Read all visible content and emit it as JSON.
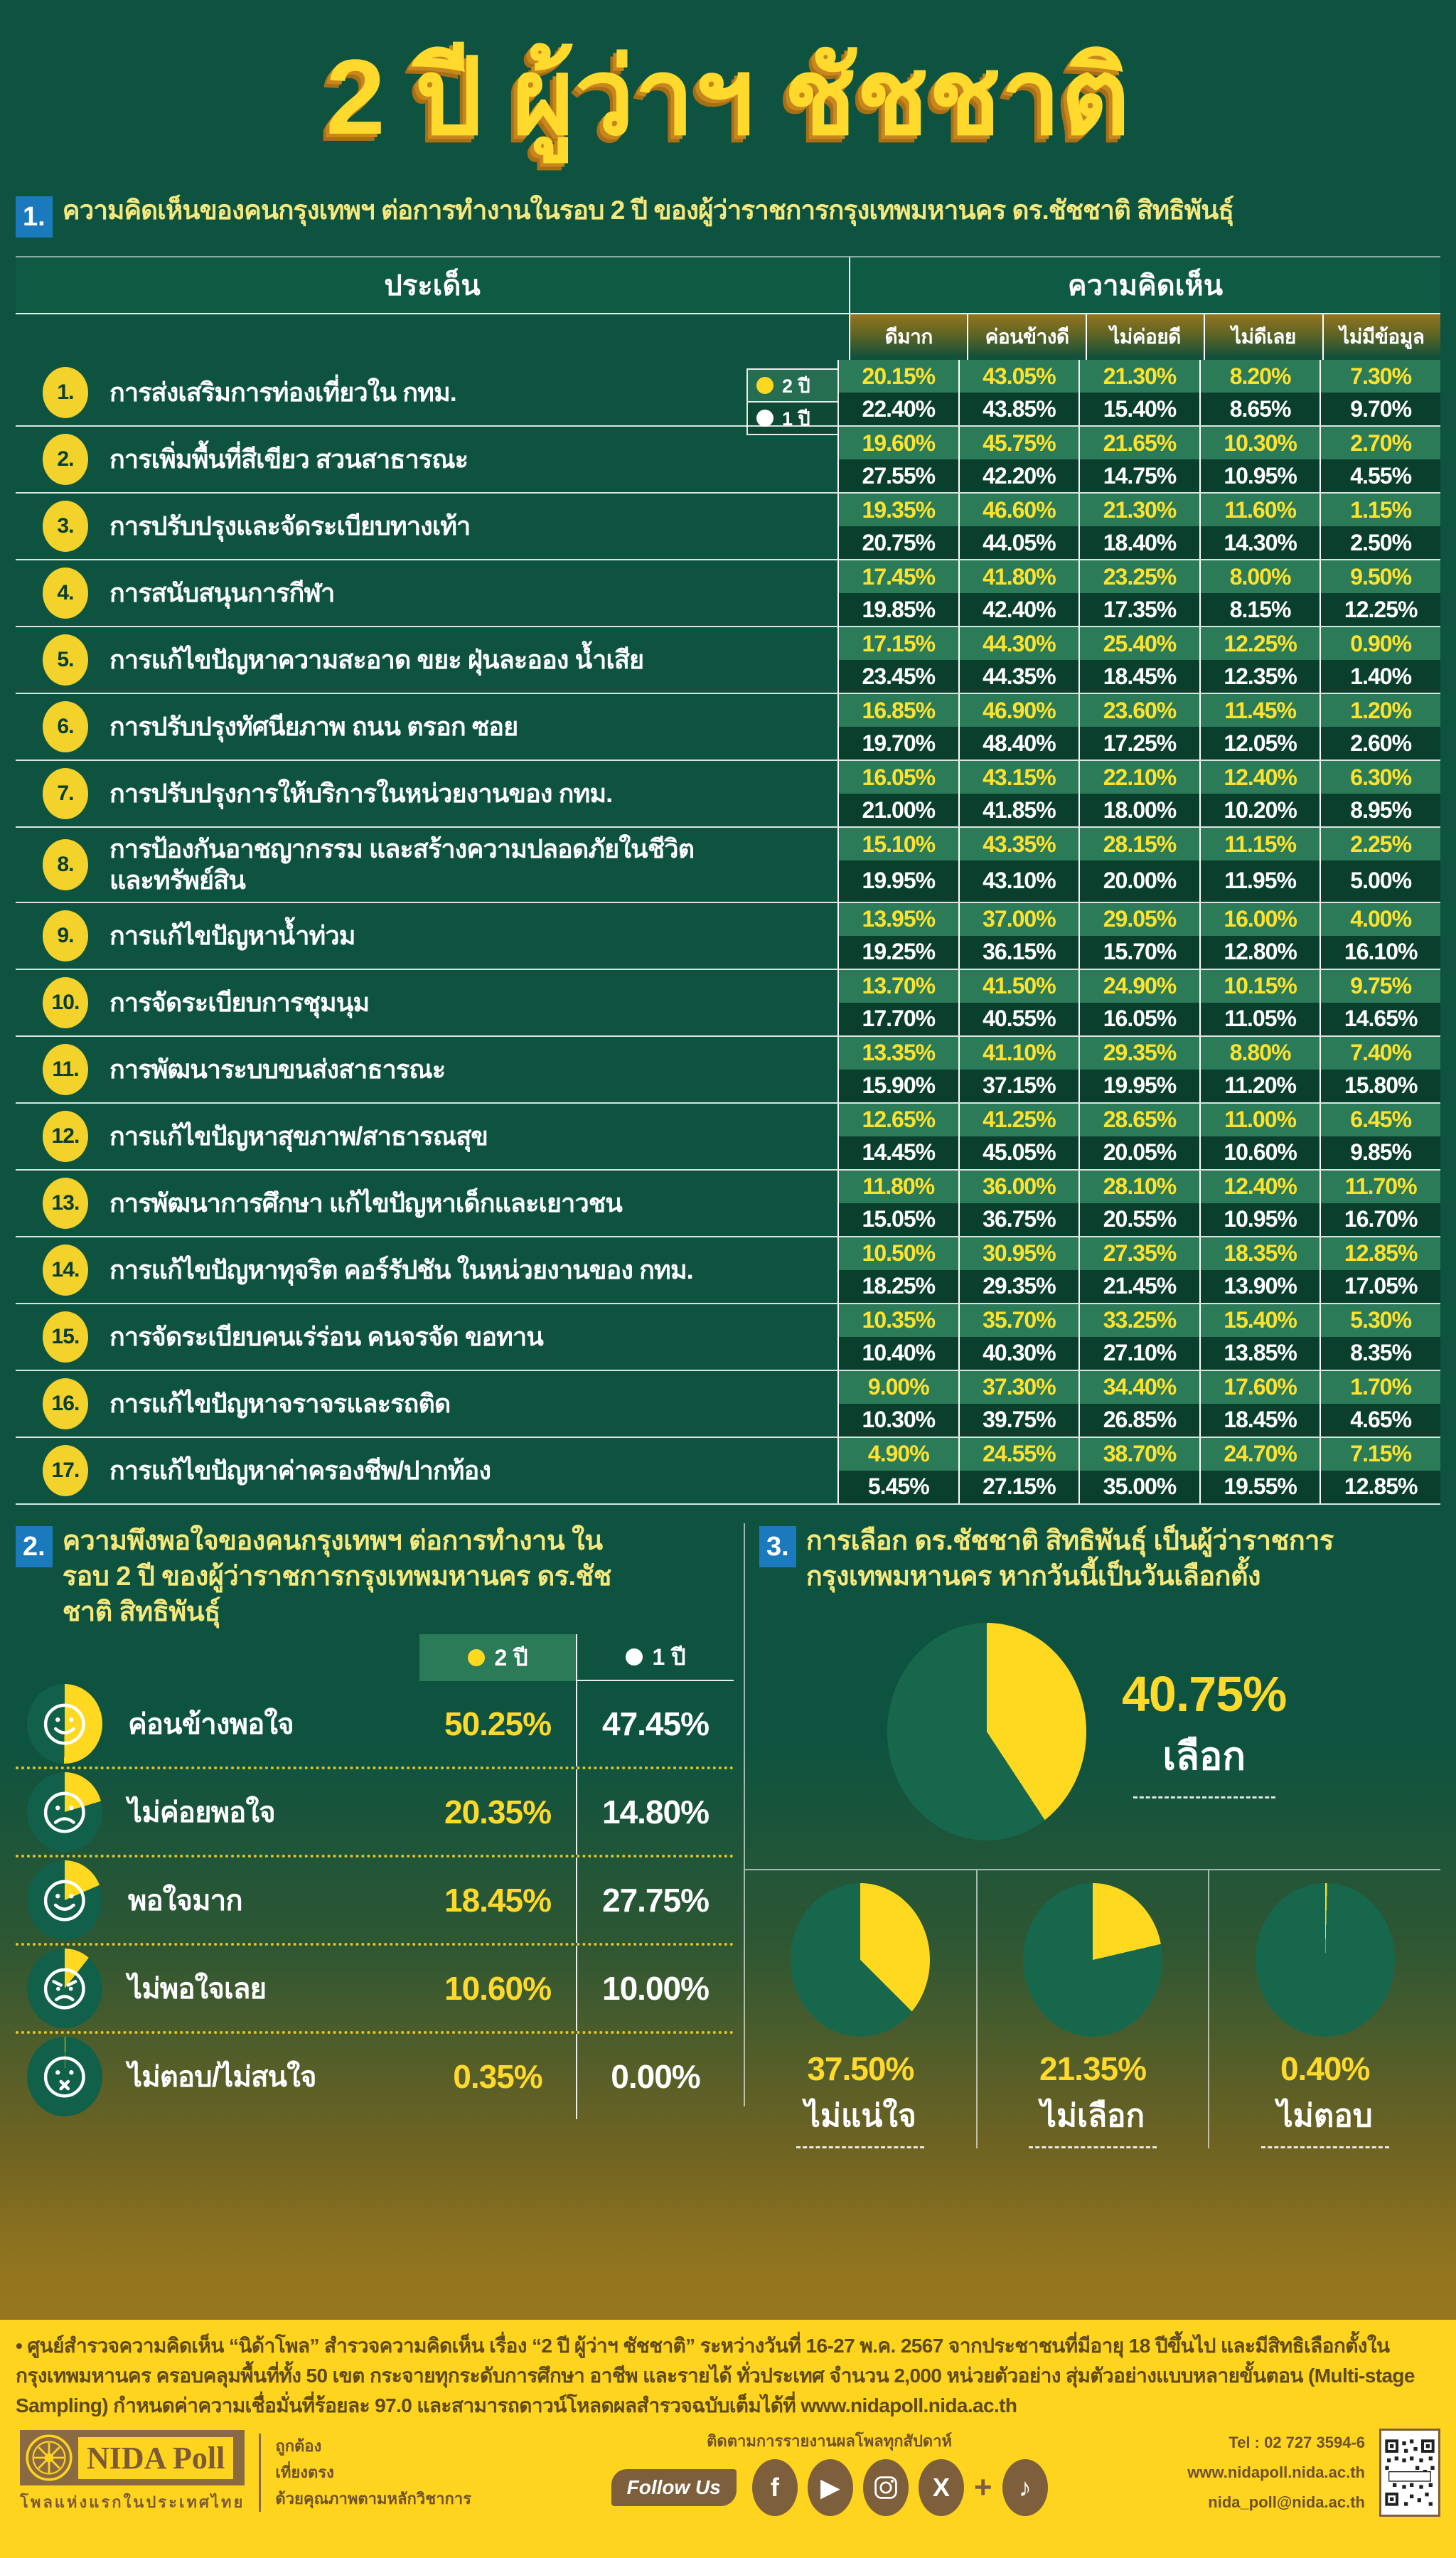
{
  "title": "2 ปี ผู้ว่าฯ ชัชชาติ",
  "colors": {
    "background_green": "#0d5340",
    "band_2yr_green": "#2b7a58",
    "band_1yr_green": "#0a3e2d",
    "header_green": "#0a3c2c",
    "accent_yellow": "#ffd92b",
    "pie_yellow": "#ffd91f",
    "pie_green": "#17674d",
    "icon_green": "#11604a",
    "badge_blue": "#1b79be",
    "footer_yellow": "#ffd41e",
    "footer_brown": "#7d5f3c"
  },
  "section1": {
    "number": "1.",
    "heading": "ความคิดเห็นของคนกรุงเทพฯ ต่อการทำงานในรอบ 2 ปี ของผู้ว่าราชการกรุงเทพมหานคร ดร.ชัชชาติ สิทธิพันธุ์",
    "table": {
      "col_issue": "ประเด็น",
      "col_opinion": "ความคิดเห็น",
      "subheaders": [
        "ดีมาก",
        "ค่อนข้างดี",
        "ไม่ค่อยดี",
        "ไม่ดีเลย",
        "ไม่มีข้อมูล"
      ],
      "legend": {
        "y2": "2 ปี",
        "y1": "1 ปี"
      }
    }
  },
  "section2": {
    "number": "2.",
    "heading": "ความพึงพอใจของคนกรุงเทพฯ ต่อการทำงาน ในรอบ 2 ปี ของผู้ว่าราชการกรุงเทพมหานคร ดร.ชัชชาติ สิทธิพันธุ์",
    "legend": {
      "y2": "2 ปี",
      "y1": "1 ปี"
    },
    "faces": [
      "smile",
      "frown",
      "smile",
      "angry",
      "meh"
    ]
  },
  "section3": {
    "number": "3.",
    "heading": "การเลือก ดร.ชัชชาติ สิทธิพันธุ์ เป็นผู้ว่าราชการ กรุงเทพมหานคร หากวันนี้เป็นวันเลือกตั้ง"
  },
  "footnote": "• ศูนย์สำรวจความคิดเห็น “นิด้าโพล” สำรวจความคิดเห็น เรื่อง “2 ปี ผู้ว่าฯ ชัชชาติ” ระหว่างวันที่ 16-27 พ.ค. 2567 จากประชาชนที่มีอายุ 18 ปีขึ้นไป และมีสิทธิเลือกตั้งในกรุงเทพมหานคร ครอบคลุมพื้นที่ทั้ง 50 เขต กระจายทุกระดับการศึกษา อาชีพ และรายได้ ทั่วประเทศ จำนวน 2,000 หน่วยตัวอย่าง สุ่มตัวอย่างแบบหลายขั้นตอน (Multi-stage Sampling) กำหนดค่าความเชื่อมั่นที่ร้อยละ 97.0 และสามารถดาวน์โหลดผลสำรวจฉบับเต็มได้ที่ www.nidapoll.nida.ac.th",
  "footer": {
    "logo_title": "NIDA Poll",
    "logo_subtitle": "โพลแห่งแรกในประเทศไทย",
    "slogan": [
      "ถูกต้อง",
      "เที่ยงตรง",
      "ด้วยคุณภาพตามหลักวิชาการ"
    ],
    "follow_heading": "ติดตามการรายงานผลโพลทุกสัปดาห์",
    "follow_label": "Follow Us",
    "social": [
      "facebook",
      "youtube",
      "instagram",
      "x",
      "plus",
      "tiktok"
    ],
    "contact": [
      "Tel : 02 727 3594-6",
      "www.nidapoll.nida.ac.th",
      "nida_poll@nida.ac.th"
    ]
  },
  "chart_data": [
    {
      "type": "table",
      "title": "ความคิดเห็นของคนกรุงเทพฯ ต่อการทำงานในรอบ 2 ปี ของผู้ว่าราชการกรุงเทพมหานคร ดร.ชัชชาติ สิทธิพันธุ์",
      "columns": [
        "ดีมาก",
        "ค่อนข้างดี",
        "ไม่ค่อยดี",
        "ไม่ดีเลย",
        "ไม่มีข้อมูล"
      ],
      "series": [
        "2 ปี",
        "1 ปี"
      ],
      "rows": [
        {
          "no": "1.",
          "topic": "การส่งเสริมการท่องเที่ยวใน กทม.",
          "y2": [
            20.15,
            43.05,
            21.3,
            8.2,
            7.3
          ],
          "y1": [
            22.4,
            43.85,
            15.4,
            8.65,
            9.7
          ]
        },
        {
          "no": "2.",
          "topic": "การเพิ่มพื้นที่สีเขียว สวนสาธารณะ",
          "y2": [
            19.6,
            45.75,
            21.65,
            10.3,
            2.7
          ],
          "y1": [
            27.55,
            42.2,
            14.75,
            10.95,
            4.55
          ]
        },
        {
          "no": "3.",
          "topic": "การปรับปรุงและจัดระเบียบทางเท้า",
          "y2": [
            19.35,
            46.6,
            21.3,
            11.6,
            1.15
          ],
          "y1": [
            20.75,
            44.05,
            18.4,
            14.3,
            2.5
          ]
        },
        {
          "no": "4.",
          "topic": "การสนับสนุนการกีฬา",
          "y2": [
            17.45,
            41.8,
            23.25,
            8.0,
            9.5
          ],
          "y1": [
            19.85,
            42.4,
            17.35,
            8.15,
            12.25
          ]
        },
        {
          "no": "5.",
          "topic": "การแก้ไขปัญหาความสะอาด ขยะ ฝุ่นละออง น้ำเสีย",
          "y2": [
            17.15,
            44.3,
            25.4,
            12.25,
            0.9
          ],
          "y1": [
            23.45,
            44.35,
            18.45,
            12.35,
            1.4
          ]
        },
        {
          "no": "6.",
          "topic": "การปรับปรุงทัศนียภาพ ถนน ตรอก ซอย",
          "y2": [
            16.85,
            46.9,
            23.6,
            11.45,
            1.2
          ],
          "y1": [
            19.7,
            48.4,
            17.25,
            12.05,
            2.6
          ]
        },
        {
          "no": "7.",
          "topic": "การปรับปรุงการให้บริการในหน่วยงานของ กทม.",
          "y2": [
            16.05,
            43.15,
            22.1,
            12.4,
            6.3
          ],
          "y1": [
            21.0,
            41.85,
            18.0,
            10.2,
            8.95
          ]
        },
        {
          "no": "8.",
          "topic": "การป้องกันอาชญากรรม และสร้างความปลอดภัยในชีวิต และทรัพย์สิน",
          "y2": [
            15.1,
            43.35,
            28.15,
            11.15,
            2.25
          ],
          "y1": [
            19.95,
            43.1,
            20.0,
            11.95,
            5.0
          ]
        },
        {
          "no": "9.",
          "topic": "การแก้ไขปัญหาน้ำท่วม",
          "y2": [
            13.95,
            37.0,
            29.05,
            16.0,
            4.0
          ],
          "y1": [
            19.25,
            36.15,
            15.7,
            12.8,
            16.1
          ]
        },
        {
          "no": "10.",
          "topic": "การจัดระเบียบการชุมนุม",
          "y2": [
            13.7,
            41.5,
            24.9,
            10.15,
            9.75
          ],
          "y1": [
            17.7,
            40.55,
            16.05,
            11.05,
            14.65
          ]
        },
        {
          "no": "11.",
          "topic": "การพัฒนาระบบขนส่งสาธารณะ",
          "y2": [
            13.35,
            41.1,
            29.35,
            8.8,
            7.4
          ],
          "y1": [
            15.9,
            37.15,
            19.95,
            11.2,
            15.8
          ]
        },
        {
          "no": "12.",
          "topic": "การแก้ไขปัญหาสุขภาพ/สาธารณสุข",
          "y2": [
            12.65,
            41.25,
            28.65,
            11.0,
            6.45
          ],
          "y1": [
            14.45,
            45.05,
            20.05,
            10.6,
            9.85
          ]
        },
        {
          "no": "13.",
          "topic": "การพัฒนาการศึกษา แก้ไขปัญหาเด็กและเยาวชน",
          "y2": [
            11.8,
            36.0,
            28.1,
            12.4,
            11.7
          ],
          "y1": [
            15.05,
            36.75,
            20.55,
            10.95,
            16.7
          ]
        },
        {
          "no": "14.",
          "topic": "การแก้ไขปัญหาทุจริต คอร์รัปชัน ในหน่วยงานของ กทม.",
          "y2": [
            10.5,
            30.95,
            27.35,
            18.35,
            12.85
          ],
          "y1": [
            18.25,
            29.35,
            21.45,
            13.9,
            17.05
          ]
        },
        {
          "no": "15.",
          "topic": "การจัดระเบียบคนเร่ร่อน คนจรจัด ขอทาน",
          "y2": [
            10.35,
            35.7,
            33.25,
            15.4,
            5.3
          ],
          "y1": [
            10.4,
            40.3,
            27.1,
            13.85,
            8.35
          ]
        },
        {
          "no": "16.",
          "topic": "การแก้ไขปัญหาจราจรและรถติด",
          "y2": [
            9.0,
            37.3,
            34.4,
            17.6,
            1.7
          ],
          "y1": [
            10.3,
            39.75,
            26.85,
            18.45,
            4.65
          ]
        },
        {
          "no": "17.",
          "topic": "การแก้ไขปัญหาค่าครองชีพ/ปากท้อง",
          "y2": [
            4.9,
            24.55,
            38.7,
            24.7,
            7.15
          ],
          "y1": [
            5.45,
            27.15,
            35.0,
            19.55,
            12.85
          ]
        }
      ]
    },
    {
      "type": "table",
      "title": "ความพึงพอใจของคนกรุงเทพฯ ต่อการทำงานในรอบ 2 ปี ของผู้ว่าราชการกรุงเทพมหานคร ดร.ชัชชาติ สิทธิพันธุ์",
      "categories": [
        "ค่อนข้างพอใจ",
        "ไม่ค่อยพอใจ",
        "พอใจมาก",
        "ไม่พอใจเลย",
        "ไม่ตอบ/ไม่สนใจ"
      ],
      "series": [
        {
          "name": "2 ปี",
          "values": [
            50.25,
            20.35,
            18.45,
            10.6,
            0.35
          ]
        },
        {
          "name": "1 ปี",
          "values": [
            47.45,
            14.8,
            27.75,
            10.0,
            0.0
          ]
        }
      ]
    },
    {
      "type": "pie",
      "title": "การเลือก ดร.ชัชชาติ สิทธิพันธุ์ เป็นผู้ว่าราชการกรุงเทพมหานคร หากวันนี้เป็นวันเลือกตั้ง",
      "labels": [
        "เลือก",
        "ไม่แน่ใจ",
        "ไม่เลือก",
        "ไม่ตอบ"
      ],
      "values": [
        40.75,
        37.5,
        21.35,
        0.4
      ]
    }
  ]
}
